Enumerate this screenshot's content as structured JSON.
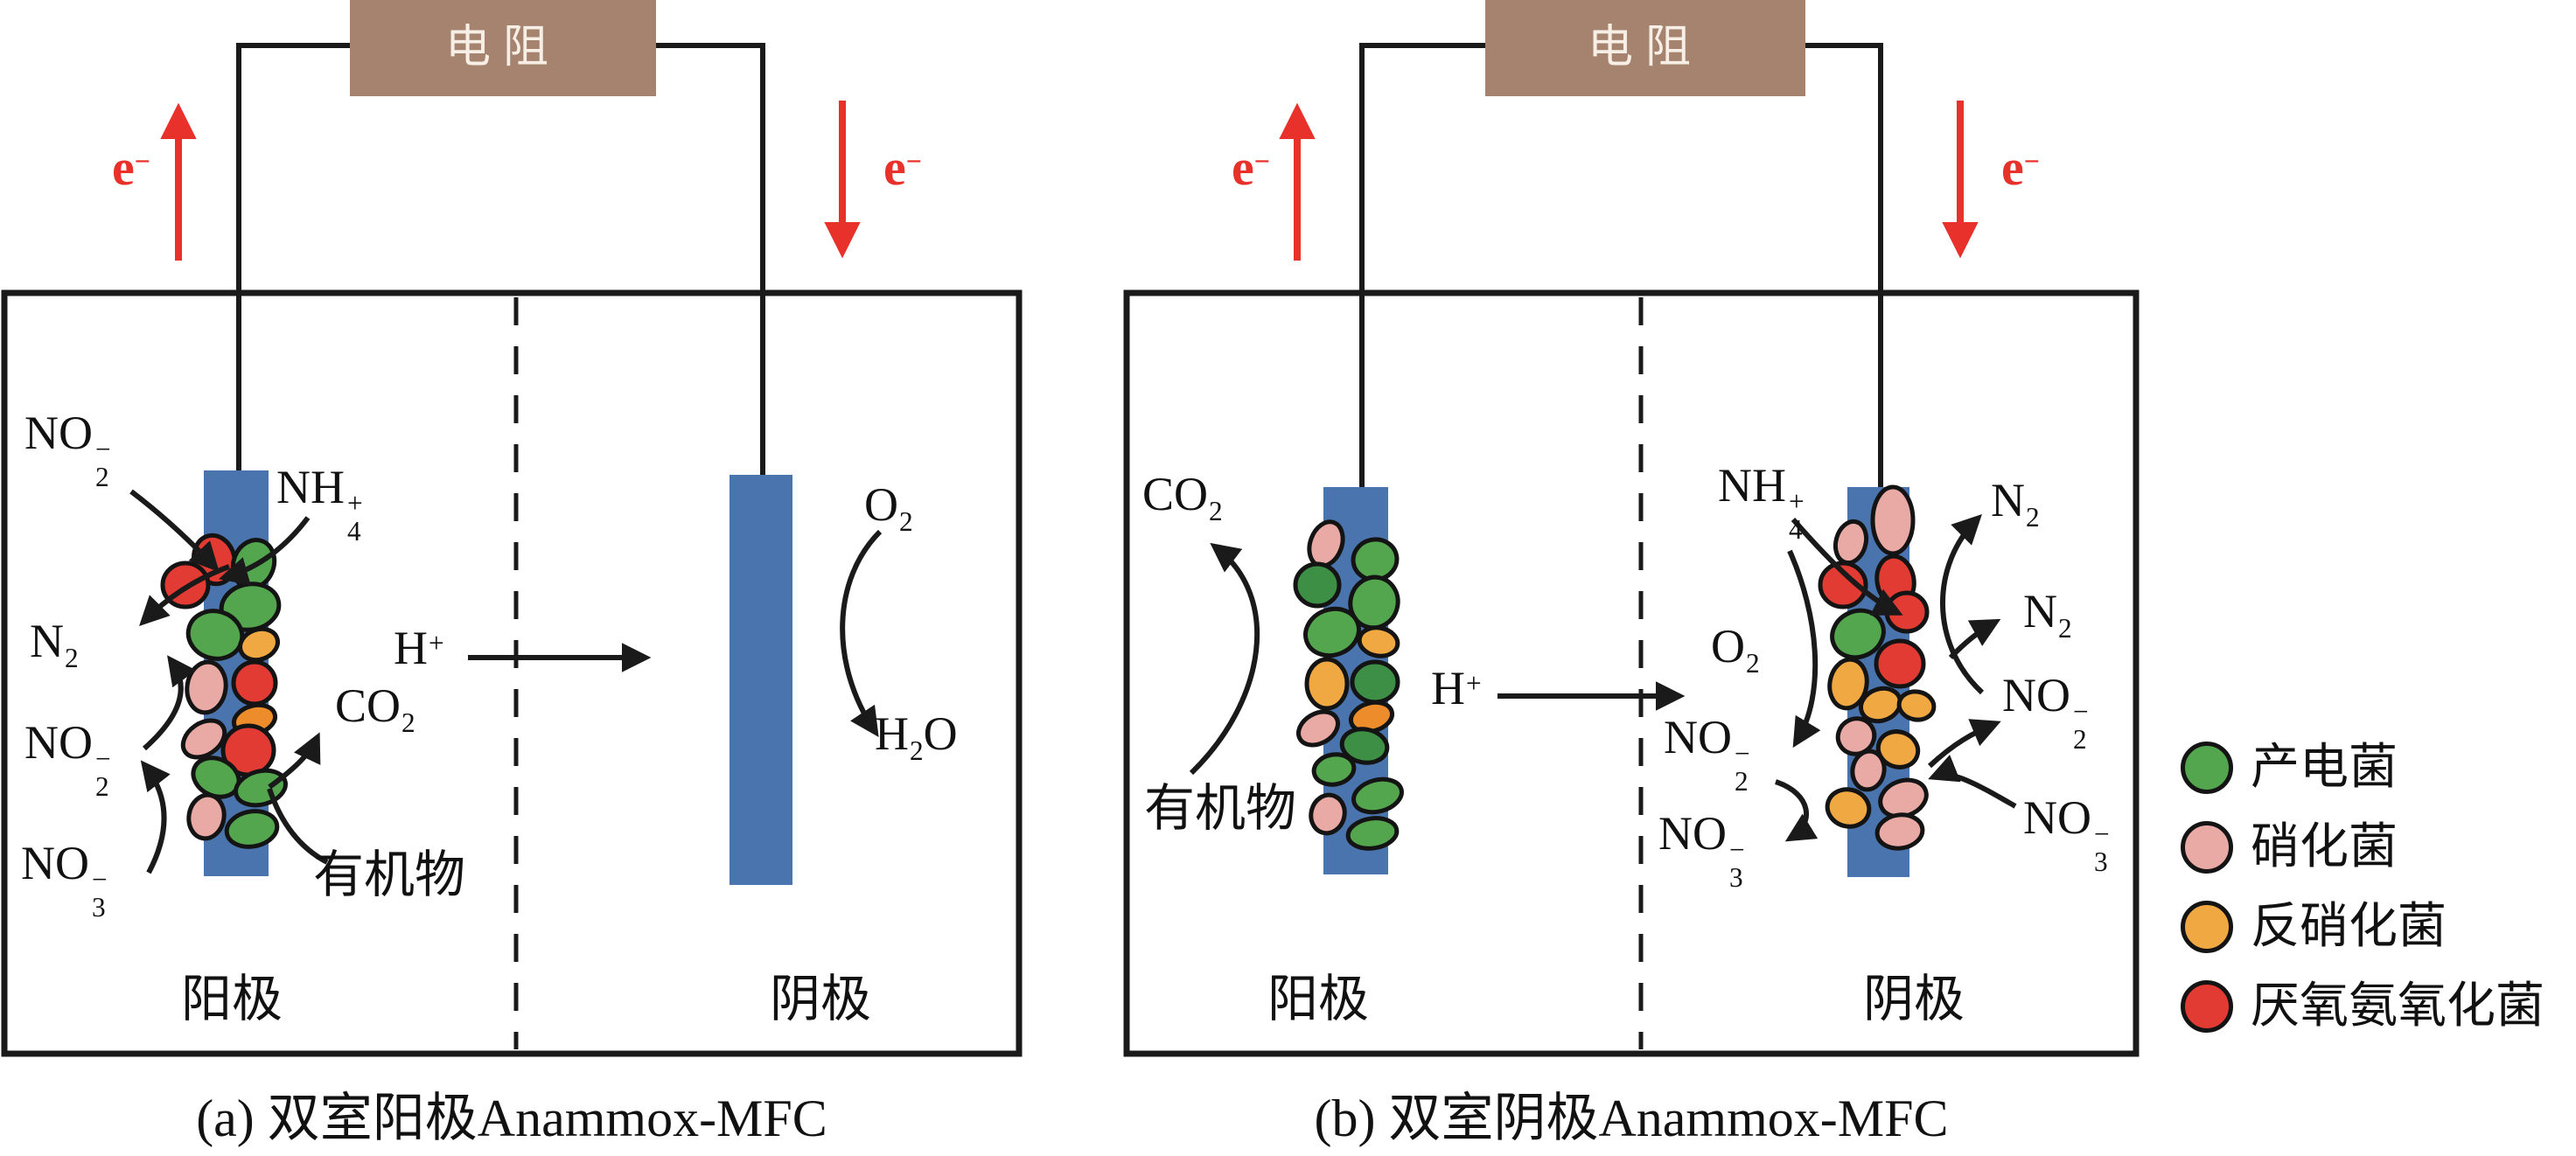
{
  "figure_type": "dual-chamber Anammox-MFC schematic",
  "colors": {
    "blue_electrode": "#4a74ad",
    "green": "#54a64e",
    "darkgreen": "#3d8f45",
    "pink": "#e9aaa6",
    "orange": "#f0a843",
    "darkorange": "#ec8c2b",
    "red": "#e23b33",
    "resistor_brown": "#a5836f",
    "resistor_text": "#f7efe5",
    "electron_red": "#e8312a",
    "ink": "#1a1a1a"
  },
  "legend": {
    "items": [
      {
        "color": "green",
        "label": "产电菌"
      },
      {
        "color": "pink",
        "label": "硝化菌"
      },
      {
        "color": "orange",
        "label": "反硝化菌"
      },
      {
        "color": "red",
        "label": "厌氧氨氧化菌"
      }
    ]
  },
  "diagram_a": {
    "caption": "(a) 双室阳极Anammox-MFC",
    "resistor": "电阻",
    "electron": {
      "base": "e",
      "sup": "−"
    },
    "anode": "阳极",
    "cathode": "阴极",
    "labels": {
      "no2_top": {
        "base": "NO",
        "sup": "−",
        "sub": "2"
      },
      "nh4": {
        "base": "NH",
        "sup": "+",
        "sub": "4"
      },
      "n2": {
        "base": "N",
        "sub": "2"
      },
      "no2_mid": {
        "base": "NO",
        "sup": "−",
        "sub": "2"
      },
      "no3": {
        "base": "NO",
        "sup": "−",
        "sub": "3"
      },
      "co2": {
        "base": "CO",
        "sub": "2"
      },
      "organic": "有机物",
      "h_plus": {
        "base": "H",
        "sup": "+"
      },
      "o2": {
        "base": "O",
        "sub": "2"
      },
      "h2o": {
        "base": "H",
        "sub": "2",
        "base2": "O"
      }
    },
    "anode_biofilm": [
      [
        245,
        640,
        23,
        28,
        -15,
        "red"
      ],
      [
        212,
        669,
        26,
        25,
        0,
        "red"
      ],
      [
        290,
        645,
        23,
        28,
        20,
        "green"
      ],
      [
        286,
        694,
        33,
        26,
        -10,
        "green"
      ],
      [
        246,
        726,
        31,
        27,
        15,
        "green"
      ],
      [
        296,
        737,
        22,
        17,
        -20,
        "orange"
      ],
      [
        236,
        786,
        22,
        29,
        8,
        "pink"
      ],
      [
        291,
        781,
        24,
        24,
        0,
        "red"
      ],
      [
        291,
        823,
        24,
        16,
        -15,
        "darkorange"
      ],
      [
        233,
        845,
        26,
        18,
        -35,
        "pink"
      ],
      [
        284,
        858,
        29,
        28,
        0,
        "red"
      ],
      [
        247,
        889,
        27,
        21,
        25,
        "green"
      ],
      [
        298,
        901,
        29,
        19,
        -15,
        "green"
      ],
      [
        236,
        934,
        20,
        25,
        10,
        "pink"
      ],
      [
        288,
        948,
        29,
        20,
        -10,
        "green"
      ]
    ]
  },
  "diagram_b": {
    "caption": "(b) 双室阴极Anammox-MFC",
    "resistor": "电阻",
    "electron": {
      "base": "e",
      "sup": "−"
    },
    "anode": "阳极",
    "cathode": "阴极",
    "labels": {
      "co2": {
        "base": "CO",
        "sub": "2"
      },
      "organic": "有机物",
      "h_plus": {
        "base": "H",
        "sup": "+"
      },
      "nh4": {
        "base": "NH",
        "sup": "+",
        "sub": "4"
      },
      "o2": {
        "base": "O",
        "sub": "2"
      },
      "no2_left": {
        "base": "NO",
        "sup": "−",
        "sub": "2"
      },
      "no3_left": {
        "base": "NO",
        "sup": "−",
        "sub": "3"
      },
      "n2_top": {
        "base": "N",
        "sub": "2"
      },
      "n2_mid": {
        "base": "N",
        "sub": "2"
      },
      "no2_right": {
        "base": "NO",
        "sup": "−",
        "sub": "2"
      },
      "no3_right": {
        "base": "NO",
        "sup": "−",
        "sub": "3"
      }
    },
    "anode_biofilm": [
      [
        1516,
        622,
        18,
        26,
        20,
        "pink"
      ],
      [
        1572,
        640,
        25,
        23,
        -10,
        "green"
      ],
      [
        1506,
        669,
        25,
        24,
        0,
        "darkgreen"
      ],
      [
        1571,
        689,
        27,
        29,
        15,
        "green"
      ],
      [
        1523,
        723,
        31,
        26,
        -20,
        "green"
      ],
      [
        1576,
        734,
        22,
        16,
        10,
        "orange"
      ],
      [
        1517,
        782,
        23,
        28,
        0,
        "orange"
      ],
      [
        1572,
        780,
        26,
        23,
        0,
        "darkgreen"
      ],
      [
        1507,
        833,
        24,
        17,
        -30,
        "pink"
      ],
      [
        1568,
        820,
        24,
        16,
        -15,
        "darkorange"
      ],
      [
        1560,
        853,
        26,
        19,
        10,
        "darkgreen"
      ],
      [
        1525,
        880,
        23,
        17,
        -10,
        "green"
      ],
      [
        1575,
        910,
        28,
        18,
        -15,
        "green"
      ],
      [
        1518,
        931,
        19,
        22,
        15,
        "pink"
      ],
      [
        1569,
        953,
        28,
        17,
        -8,
        "green"
      ]
    ],
    "cathode_biofilm": [
      [
        2164,
        595,
        23,
        38,
        0,
        "pink"
      ],
      [
        2116,
        620,
        17,
        24,
        15,
        "pink"
      ],
      [
        2107,
        669,
        26,
        25,
        0,
        "red"
      ],
      [
        2167,
        664,
        21,
        28,
        -10,
        "red"
      ],
      [
        2180,
        700,
        23,
        22,
        0,
        "red"
      ],
      [
        2124,
        725,
        30,
        26,
        -25,
        "green"
      ],
      [
        2172,
        759,
        27,
        26,
        0,
        "red"
      ],
      [
        2113,
        782,
        21,
        28,
        10,
        "orange"
      ],
      [
        2150,
        806,
        23,
        18,
        -20,
        "orange"
      ],
      [
        2191,
        807,
        20,
        16,
        10,
        "orange"
      ],
      [
        2122,
        842,
        21,
        20,
        -30,
        "pink"
      ],
      [
        2170,
        857,
        23,
        20,
        20,
        "orange"
      ],
      [
        2136,
        881,
        18,
        22,
        10,
        "pink"
      ],
      [
        2176,
        913,
        27,
        20,
        -20,
        "pink"
      ],
      [
        2113,
        924,
        24,
        21,
        15,
        "orange"
      ],
      [
        2172,
        951,
        26,
        19,
        -8,
        "pink"
      ]
    ]
  }
}
